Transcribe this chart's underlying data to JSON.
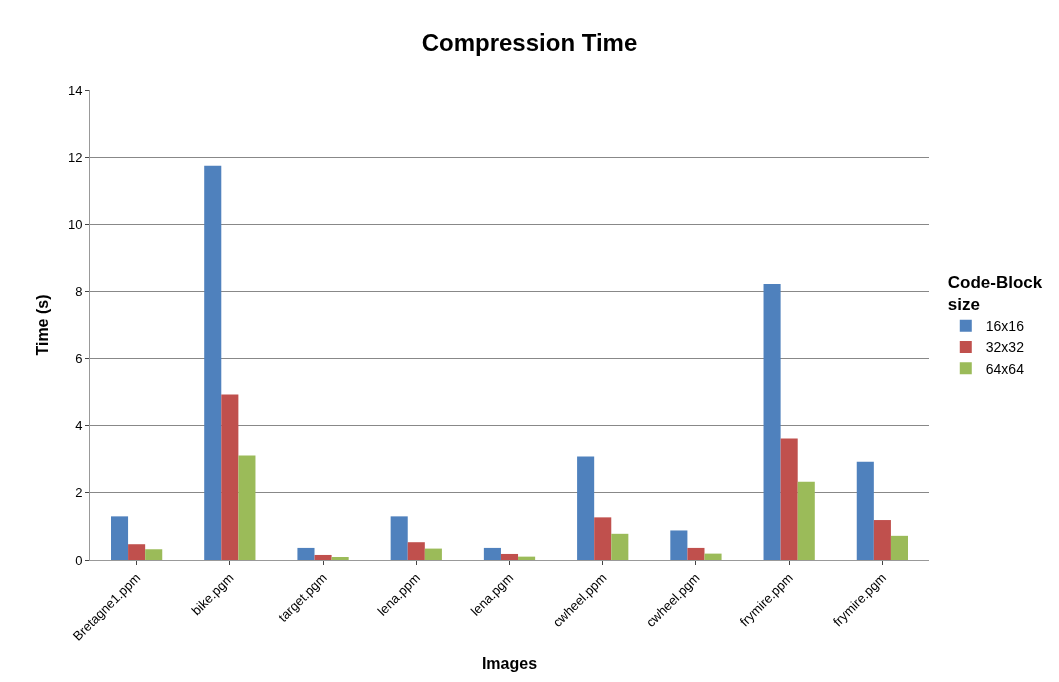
{
  "chart_data": {
    "type": "bar",
    "title": "Compression Time",
    "xlabel": "Images",
    "ylabel": "Time (s)",
    "legend_title": "Code-Block size",
    "categories": [
      "Bretagne1.ppm",
      "bike.pgm",
      "target.pgm",
      "lena.ppm",
      "lena.pgm",
      "cwheel.ppm",
      "cwheel.pgm",
      "frymire.ppm",
      "frymire.pgm"
    ],
    "series": [
      {
        "name": "16x16",
        "color": "#4f81bd",
        "values": [
          1.3,
          11.74,
          0.36,
          1.3,
          0.36,
          3.08,
          0.88,
          8.22,
          2.93
        ]
      },
      {
        "name": "32x32",
        "color": "#c0504d",
        "values": [
          0.47,
          4.93,
          0.15,
          0.53,
          0.18,
          1.27,
          0.36,
          3.62,
          1.19
        ]
      },
      {
        "name": "64x64",
        "color": "#9bbb59",
        "values": [
          0.32,
          3.11,
          0.09,
          0.34,
          0.1,
          0.78,
          0.19,
          2.33,
          0.72
        ]
      }
    ],
    "ylim": [
      0,
      14
    ],
    "yticks": [
      0,
      2,
      4,
      6,
      8,
      10,
      12,
      14
    ],
    "grid": "y",
    "legend": "right"
  }
}
